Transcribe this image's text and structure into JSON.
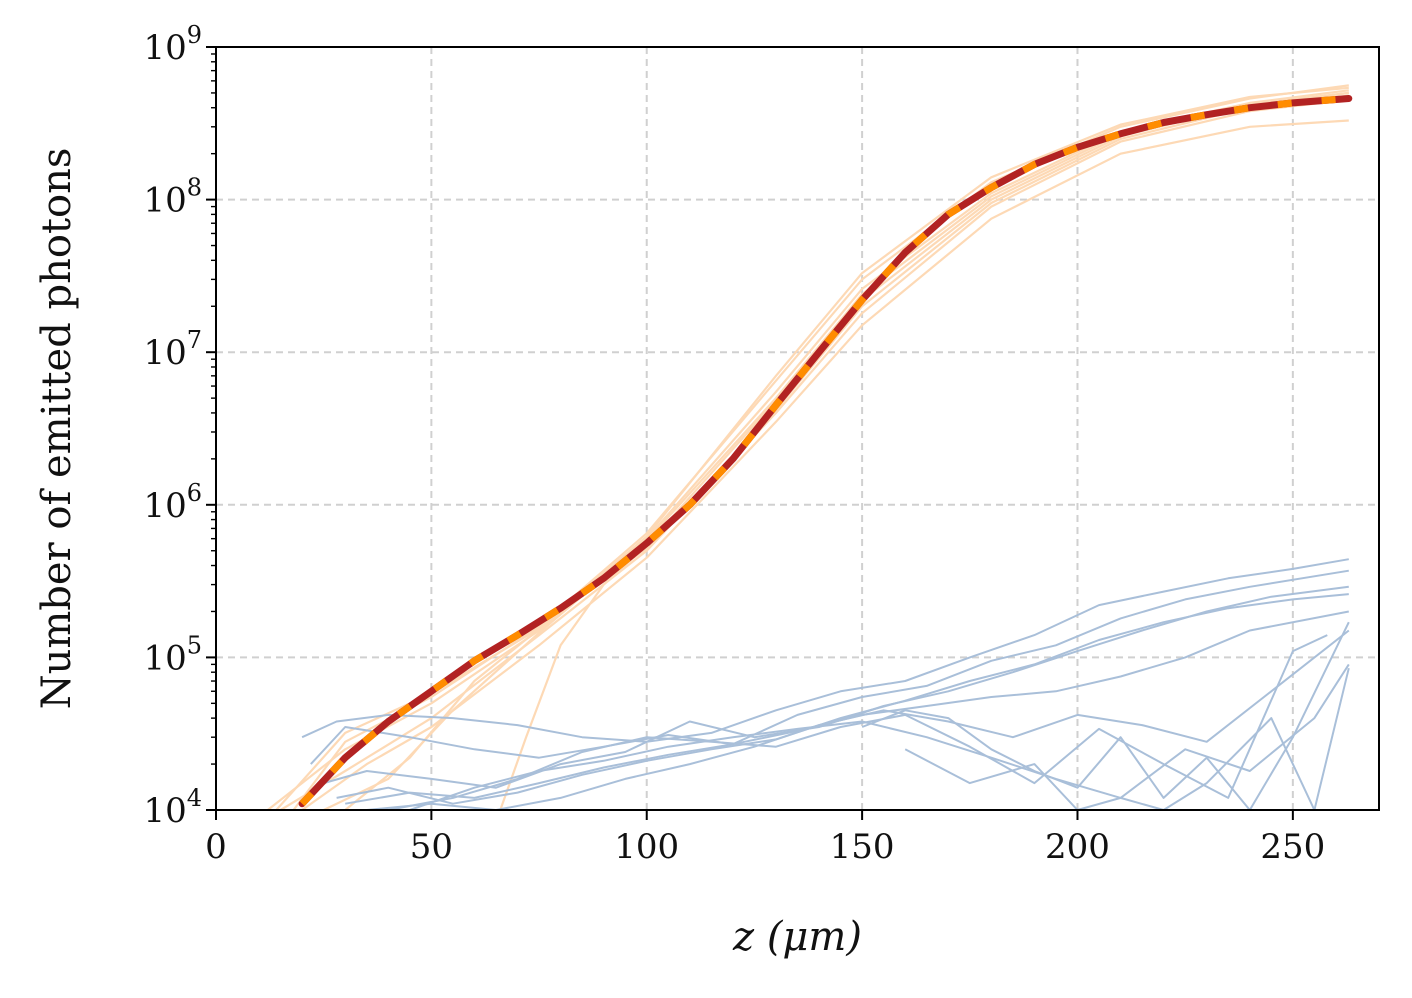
{
  "chart_data": {
    "type": "line",
    "xlabel": "z (μm)",
    "ylabel": "Number of emitted photons",
    "xlim": [
      0,
      270
    ],
    "ylim": [
      10000,
      1000000000
    ],
    "yscale": "log",
    "grid": true,
    "x_ticks": [
      0,
      50,
      100,
      150,
      200,
      250
    ],
    "x_tick_labels": [
      "0",
      "50",
      "100",
      "150",
      "200",
      "250"
    ],
    "y_ticks": [
      10000,
      100000,
      1000000,
      10000000,
      100000000,
      1000000000
    ],
    "y_tick_labels": [
      {
        "base": "10",
        "exp": "4"
      },
      {
        "base": "10",
        "exp": "5"
      },
      {
        "base": "10",
        "exp": "6"
      },
      {
        "base": "10",
        "exp": "7"
      },
      {
        "base": "10",
        "exp": "8"
      },
      {
        "base": "10",
        "exp": "9"
      }
    ],
    "colors": {
      "mean_solid": "#b22222",
      "mean_dash": "#ff8c00",
      "individual_orange": "#fdd9b5",
      "individual_blue": "#a9bfd9",
      "grid": "#d0d0d0",
      "axes": "#000000"
    },
    "series": [
      {
        "style": "mean-dashed-red-orange",
        "x": [
          20,
          30,
          40,
          50,
          60,
          70,
          80,
          90,
          100,
          110,
          120,
          130,
          140,
          150,
          160,
          170,
          180,
          190,
          200,
          210,
          220,
          230,
          240,
          250,
          263
        ],
        "y": [
          11000,
          22000,
          38000,
          60000,
          95000,
          140000,
          210000,
          330000,
          560000,
          1000000,
          2000000,
          4500000,
          10000000,
          22000000,
          45000000,
          80000000,
          120000000,
          170000000,
          220000000,
          270000000,
          320000000,
          360000000,
          400000000,
          430000000,
          460000000
        ]
      }
    ],
    "individual_orange": [
      {
        "x": [
          12,
          30,
          50,
          75,
          100,
          130,
          150,
          180,
          210,
          240,
          263
        ],
        "y": [
          10000,
          25000,
          50000,
          150000,
          600000,
          5500000,
          26000000,
          110000000,
          280000000,
          430000000,
          520000000
        ]
      },
      {
        "x": [
          15,
          30,
          50,
          75,
          100,
          130,
          150,
          180,
          210,
          240,
          263
        ],
        "y": [
          10000,
          18000,
          40000,
          140000,
          500000,
          4000000,
          18000000,
          90000000,
          240000000,
          380000000,
          450000000
        ]
      },
      {
        "x": [
          18,
          30,
          50,
          75,
          100,
          130,
          150,
          180,
          210,
          240,
          263
        ],
        "y": [
          10000,
          28000,
          55000,
          160000,
          650000,
          6500000,
          30000000,
          130000000,
          300000000,
          460000000,
          560000000
        ]
      },
      {
        "x": [
          20,
          35,
          50,
          75,
          100,
          130,
          150,
          180,
          210,
          240,
          263
        ],
        "y": [
          10000,
          20000,
          35000,
          120000,
          450000,
          3500000,
          15000000,
          75000000,
          200000000,
          300000000,
          330000000
        ]
      },
      {
        "x": [
          25,
          40,
          55,
          75,
          100,
          130,
          150,
          180,
          210,
          240,
          263
        ],
        "y": [
          10000,
          16000,
          45000,
          145000,
          580000,
          5000000,
          24000000,
          105000000,
          270000000,
          410000000,
          500000000
        ]
      },
      {
        "x": [
          30,
          45,
          60,
          80,
          100,
          130,
          150,
          180,
          210,
          240,
          263
        ],
        "y": [
          10000,
          22000,
          70000,
          200000,
          520000,
          4200000,
          20000000,
          95000000,
          250000000,
          400000000,
          480000000
        ]
      },
      {
        "x": [
          66,
          72,
          80,
          90,
          100,
          130,
          150,
          180,
          210,
          240,
          263
        ],
        "y": [
          10000,
          30000,
          120000,
          300000,
          540000,
          4800000,
          22000000,
          100000000,
          260000000,
          420000000,
          500000000
        ]
      },
      {
        "x": [
          14,
          30,
          50,
          75,
          100,
          130,
          150,
          180,
          210,
          240,
          263
        ],
        "y": [
          10000,
          32000,
          58000,
          155000,
          620000,
          7000000,
          33000000,
          140000000,
          310000000,
          470000000,
          540000000
        ]
      }
    ],
    "individual_blue": [
      {
        "x": [
          20,
          28,
          40,
          55,
          70,
          85,
          100,
          115,
          130,
          145,
          160,
          175,
          190,
          205,
          220,
          235,
          250,
          263
        ],
        "y": [
          30000,
          38000,
          42000,
          40000,
          36000,
          30000,
          28000,
          32000,
          45000,
          60000,
          70000,
          100000,
          140000,
          220000,
          270000,
          330000,
          380000,
          440000
        ]
      },
      {
        "x": [
          22,
          30,
          45,
          60,
          75,
          90,
          105,
          120,
          135,
          150,
          165,
          180,
          195,
          210,
          225,
          240,
          263
        ],
        "y": [
          20000,
          35000,
          30000,
          25000,
          22000,
          26000,
          31000,
          27000,
          42000,
          55000,
          65000,
          95000,
          120000,
          180000,
          240000,
          290000,
          370000
        ]
      },
      {
        "x": [
          25,
          35,
          50,
          65,
          80,
          95,
          110,
          125,
          140,
          155,
          170,
          185,
          200,
          215,
          230,
          245,
          263
        ],
        "y": [
          15000,
          18000,
          16000,
          14000,
          20000,
          24000,
          38000,
          30000,
          35000,
          48000,
          60000,
          80000,
          110000,
          150000,
          200000,
          250000,
          290000
        ]
      },
      {
        "x": [
          28,
          40,
          55,
          70,
          85,
          100,
          115,
          130,
          145,
          160,
          175,
          190,
          205,
          220,
          235,
          250,
          263
        ],
        "y": [
          12000,
          14000,
          11000,
          13000,
          17000,
          21000,
          25000,
          29000,
          40000,
          52000,
          70000,
          90000,
          130000,
          170000,
          210000,
          240000,
          260000
        ]
      },
      {
        "x": [
          30,
          45,
          60,
          75,
          90,
          105,
          120,
          135,
          150,
          165,
          180,
          195,
          210,
          225,
          240,
          263
        ],
        "y": [
          11000,
          13000,
          12000,
          15000,
          19000,
          23000,
          27000,
          33000,
          42000,
          48000,
          55000,
          60000,
          75000,
          100000,
          150000,
          200000
        ]
      },
      {
        "x": [
          35,
          50,
          65,
          80,
          95,
          110,
          125,
          140,
          155,
          170,
          185,
          200,
          215,
          230,
          245,
          263
        ],
        "y": [
          10000,
          11000,
          10000,
          12000,
          16000,
          20000,
          26000,
          36000,
          45000,
          38000,
          30000,
          42000,
          36000,
          28000,
          60000,
          150000
        ]
      },
      {
        "x": [
          40,
          55,
          70,
          85,
          100,
          115,
          130,
          145,
          160,
          175,
          190,
          205,
          220,
          235,
          250,
          258
        ],
        "y": [
          10000,
          12000,
          16000,
          24000,
          30000,
          28000,
          26000,
          35000,
          42000,
          26000,
          15000,
          34000,
          20000,
          12000,
          110000,
          140000
        ]
      },
      {
        "x": [
          45,
          60,
          75,
          90,
          105,
          120,
          135,
          150,
          165,
          180,
          195,
          210,
          225,
          240,
          255,
          263
        ],
        "y": [
          10000,
          14000,
          18000,
          21000,
          26000,
          30000,
          34000,
          38000,
          30000,
          22000,
          16000,
          12000,
          25000,
          18000,
          40000,
          90000
        ]
      },
      {
        "x": [
          150,
          160,
          170,
          180,
          190,
          200,
          210,
          220,
          230,
          240,
          250,
          263
        ],
        "y": [
          35000,
          45000,
          40000,
          25000,
          18000,
          14000,
          30000,
          12000,
          22000,
          10000,
          30000,
          170000
        ]
      },
      {
        "x": [
          160,
          175,
          190,
          200,
          210,
          220,
          230,
          245,
          255,
          263
        ],
        "y": [
          25000,
          15000,
          20000,
          10000,
          12000,
          10000,
          15000,
          40000,
          10000,
          85000
        ]
      }
    ]
  }
}
